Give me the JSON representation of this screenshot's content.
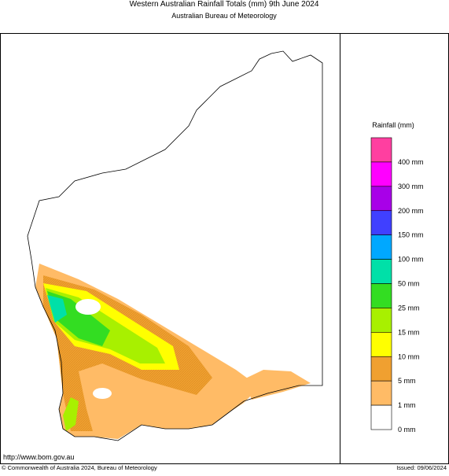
{
  "header": {
    "title": "Western Australian Rainfall Totals (mm) 9th June 2024",
    "subtitle": "Australian Bureau of Meteorology"
  },
  "legend": {
    "title": "Rainfall (mm)",
    "colors": [
      "#ff3fa0",
      "#ff00ff",
      "#a800e8",
      "#4040ff",
      "#00a8ff",
      "#00e0a8",
      "#33dd22",
      "#a8f000",
      "#ffff00",
      "#f0a030",
      "#ffbb66",
      "#ffffff"
    ],
    "labels": [
      "400 mm",
      "300 mm",
      "200 mm",
      "150 mm",
      "100 mm",
      "50 mm",
      "25 mm",
      "15 mm",
      "10 mm",
      "5 mm",
      "1 mm",
      "0 mm"
    ]
  },
  "footer": {
    "url": "http://www.bom.gov.au",
    "copyright": "© Commonwealth of Australia 2024, Bureau of Meteorology",
    "issued": "Issued: 09/06/2024"
  }
}
